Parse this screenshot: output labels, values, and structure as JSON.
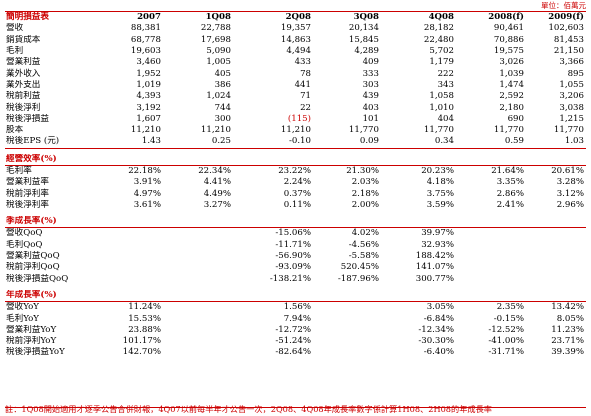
{
  "unit_label": "單位：佰萬元",
  "header": {
    "label": "簡明損益表",
    "columns": [
      "2007",
      "1Q08",
      "2Q08",
      "3Q08",
      "4Q08",
      "2008(f)",
      "2009(f)"
    ]
  },
  "income_rows": [
    {
      "label": "營收",
      "values": [
        "88,381",
        "22,788",
        "19,357",
        "20,134",
        "28,182",
        "90,461",
        "102,603"
      ]
    },
    {
      "label": "銷貨成本",
      "values": [
        "68,778",
        "17,698",
        "14,863",
        "15,845",
        "22,480",
        "70,886",
        "81,453"
      ]
    },
    {
      "label": "毛利",
      "values": [
        "19,603",
        "5,090",
        "4,494",
        "4,289",
        "5,702",
        "19,575",
        "21,150"
      ]
    },
    {
      "label": "營業利益",
      "values": [
        "3,460",
        "1,005",
        "433",
        "409",
        "1,179",
        "3,026",
        "3,366"
      ]
    },
    {
      "label": "業外收入",
      "values": [
        "1,952",
        "405",
        "78",
        "333",
        "222",
        "1,039",
        "895"
      ]
    },
    {
      "label": "業外支出",
      "values": [
        "1,019",
        "386",
        "441",
        "303",
        "343",
        "1,474",
        "1,055"
      ]
    },
    {
      "label": "稅前利益",
      "values": [
        "4,393",
        "1,024",
        "71",
        "439",
        "1,058",
        "2,592",
        "3,206"
      ]
    },
    {
      "label": "稅後淨利",
      "values": [
        "3,192",
        "744",
        "22",
        "403",
        "1,010",
        "2,180",
        "3,038"
      ]
    },
    {
      "label": "稅後淨損益",
      "values": [
        "1,607",
        "300",
        "(115)",
        "101",
        "404",
        "690",
        "1,215"
      ]
    },
    {
      "label": "股本",
      "values": [
        "11,210",
        "11,210",
        "11,210",
        "11,770",
        "11,770",
        "11,770",
        "11,770"
      ]
    },
    {
      "label": "稅後EPS (元)",
      "values": [
        "1.43",
        "0.25",
        "-0.10",
        "0.09",
        "0.34",
        "0.59",
        "1.03"
      ]
    }
  ],
  "sections": [
    {
      "title": "經營效率(%)",
      "rows": [
        {
          "label": "毛利率",
          "values": [
            "22.18%",
            "22.34%",
            "23.22%",
            "21.30%",
            "20.23%",
            "21.64%",
            "20.61%"
          ]
        },
        {
          "label": "營業利益率",
          "values": [
            "3.91%",
            "4.41%",
            "2.24%",
            "2.03%",
            "4.18%",
            "3.35%",
            "3.28%"
          ]
        },
        {
          "label": "稅前淨利率",
          "values": [
            "4.97%",
            "4.49%",
            "0.37%",
            "2.18%",
            "3.75%",
            "2.86%",
            "3.12%"
          ]
        },
        {
          "label": "稅後淨利率",
          "values": [
            "3.61%",
            "3.27%",
            "0.11%",
            "2.00%",
            "3.59%",
            "2.41%",
            "2.96%"
          ]
        }
      ]
    },
    {
      "title": "季成長率(%)",
      "rows": [
        {
          "label": "營收QoQ",
          "values": [
            "",
            "",
            "-15.06%",
            "4.02%",
            "39.97%",
            "",
            ""
          ]
        },
        {
          "label": "毛利QoQ",
          "values": [
            "",
            "",
            "-11.71%",
            "-4.56%",
            "32.93%",
            "",
            ""
          ]
        },
        {
          "label": "營業利益QoQ",
          "values": [
            "",
            "",
            "-56.90%",
            "-5.58%",
            "188.42%",
            "",
            ""
          ]
        },
        {
          "label": "稅前淨利QoQ",
          "values": [
            "",
            "",
            "-93.09%",
            "520.45%",
            "141.07%",
            "",
            ""
          ]
        },
        {
          "label": "稅後淨損益QoQ",
          "values": [
            "",
            "",
            "-138.21%",
            "-187.96%",
            "300.77%",
            "",
            ""
          ]
        }
      ]
    },
    {
      "title": "年成長率(%)",
      "rows": [
        {
          "label": "營收YoY",
          "values": [
            "11.24%",
            "",
            "1.56%",
            "",
            "3.05%",
            "2.35%",
            "13.42%"
          ]
        },
        {
          "label": "毛利YoY",
          "values": [
            "15.53%",
            "",
            "7.94%",
            "",
            "-6.84%",
            "-0.15%",
            "8.05%"
          ]
        },
        {
          "label": "營業利益YoY",
          "values": [
            "23.88%",
            "",
            "-12.72%",
            "",
            "-12.34%",
            "-12.52%",
            "11.23%"
          ]
        },
        {
          "label": "稅前淨利YoY",
          "values": [
            "101.17%",
            "",
            "-51.24%",
            "",
            "-30.30%",
            "-41.00%",
            "23.71%"
          ]
        },
        {
          "label": "稅後淨損益YoY",
          "values": [
            "142.70%",
            "",
            "-82.64%",
            "",
            "-6.40%",
            "-31.71%",
            "39.39%"
          ]
        }
      ]
    }
  ],
  "footnote": "註：1Q08開始適用才逐季公告合併財報，4Q07以前每半年才公告一次，2Q08、4Q08年成長率數字係計算1H08、2H08的年成長率",
  "colors": {
    "accent": "#cc0000",
    "text": "#000000",
    "background": "#ffffff"
  }
}
